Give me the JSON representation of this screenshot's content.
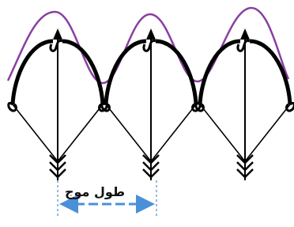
{
  "label": "طول موج"
}
